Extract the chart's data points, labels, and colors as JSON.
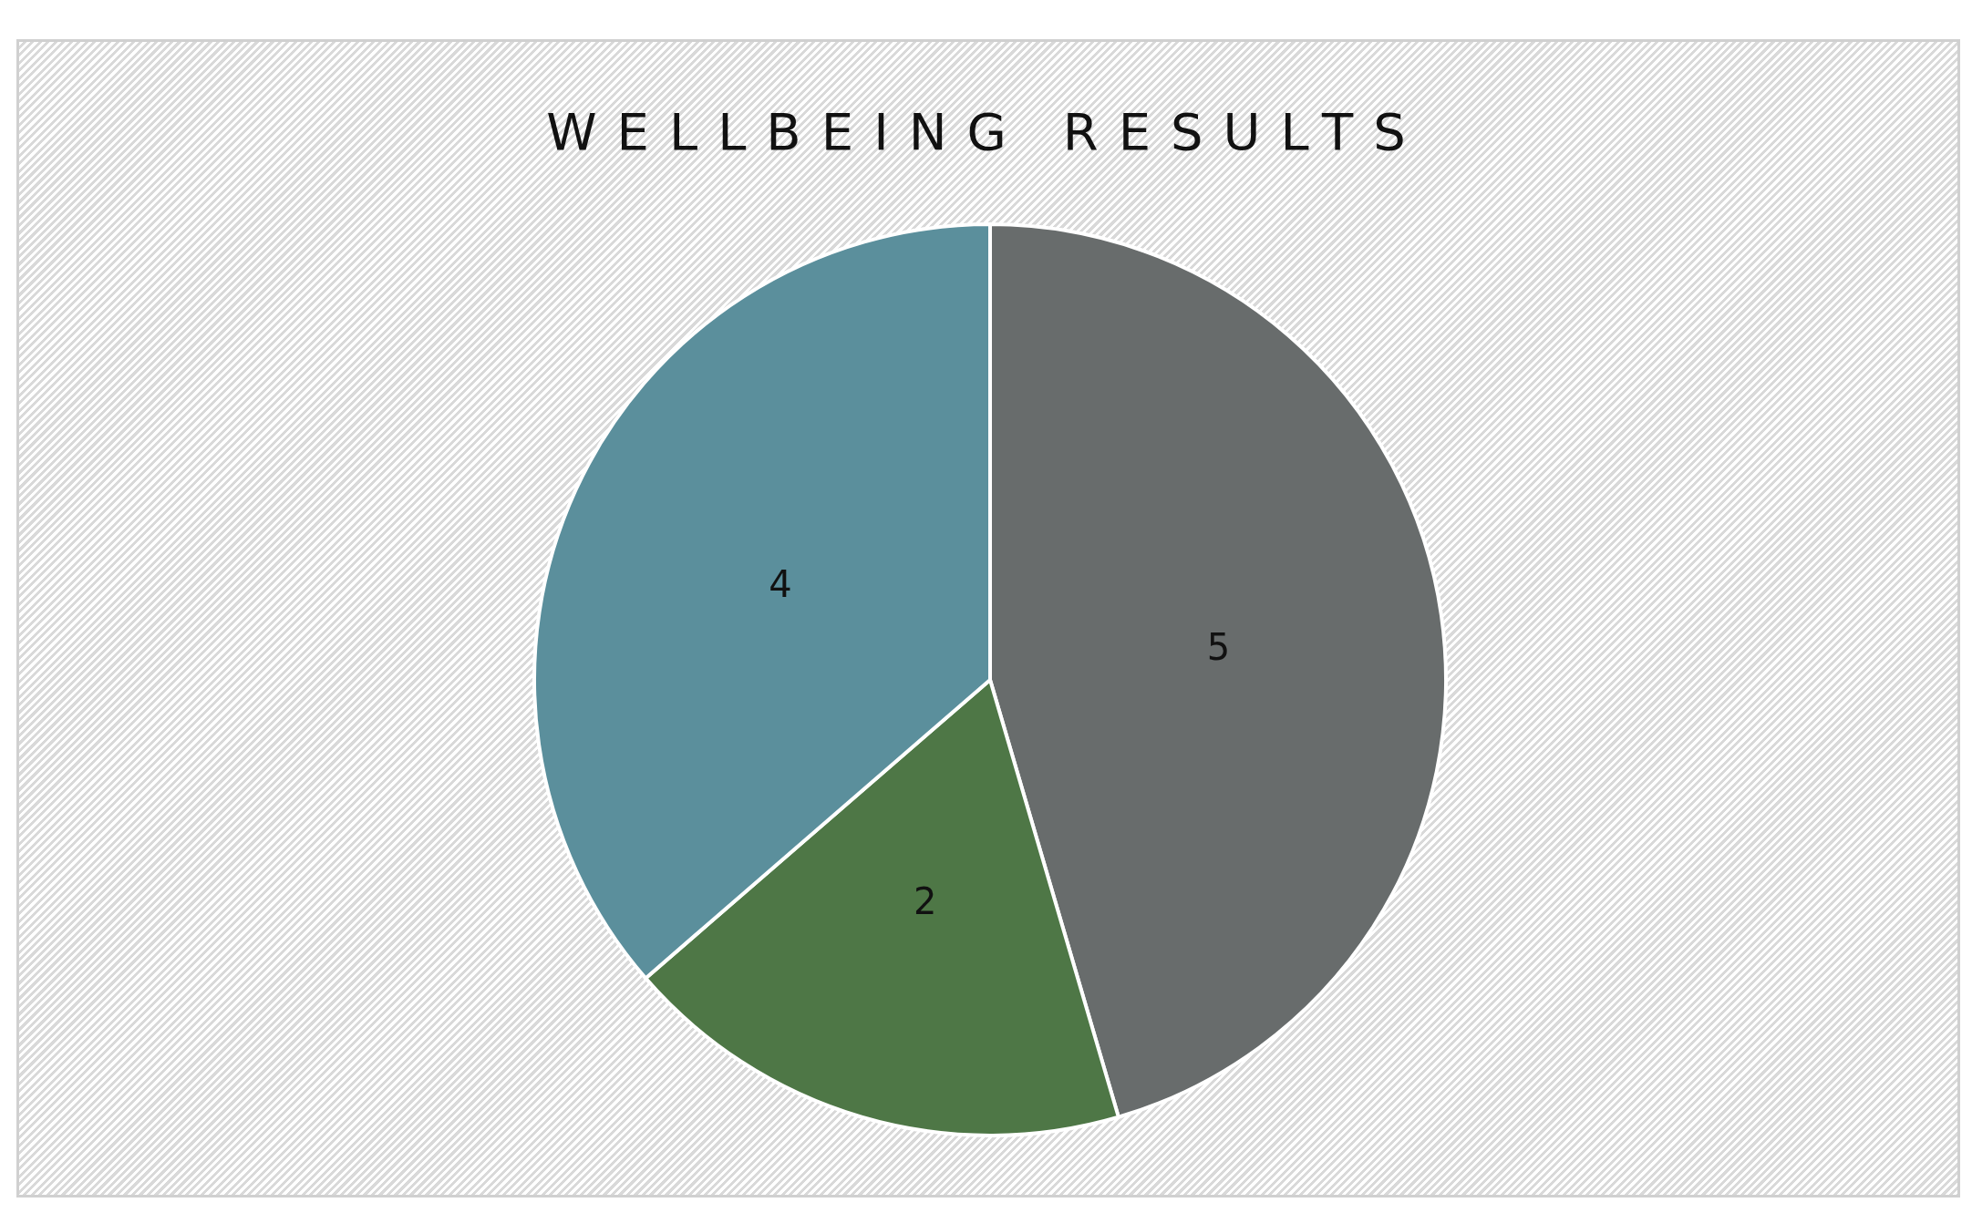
{
  "chart_data": {
    "type": "pie",
    "title": "WELLBEING RESULTS",
    "categories": [
      null,
      null,
      null
    ],
    "values": [
      5,
      2,
      4
    ],
    "colors": [
      "#686c6c",
      "#4e7746",
      "#5b8f9c"
    ],
    "data_labels": true
  }
}
